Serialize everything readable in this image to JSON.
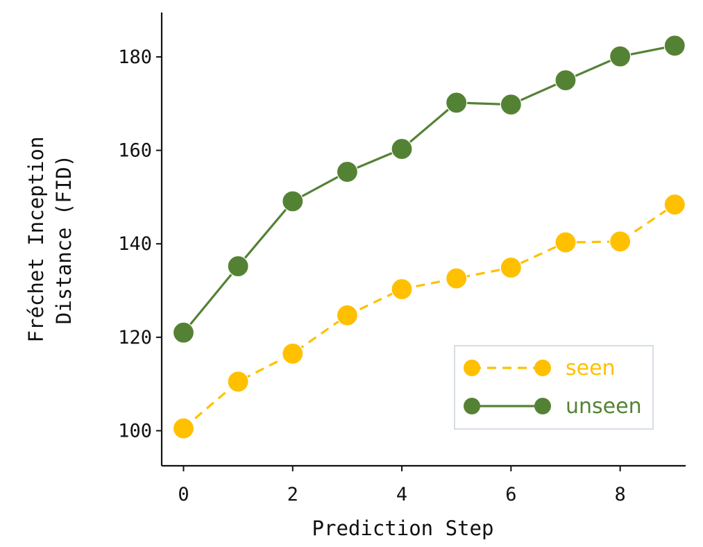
{
  "chart_data": {
    "type": "line",
    "xlabel": "Prediction Step",
    "ylabel_lines": [
      "Fréchet Inception",
      "Distance (FID)"
    ],
    "x": [
      0,
      1,
      2,
      3,
      4,
      5,
      6,
      7,
      8,
      9
    ],
    "xticks": [
      0,
      2,
      4,
      6,
      8
    ],
    "yticks": [
      100,
      120,
      140,
      160,
      180
    ],
    "xlim": [
      -0.4,
      9.2
    ],
    "ylim": [
      92.5,
      189.5
    ],
    "grid": false,
    "legend_position": "lower-right",
    "series": [
      {
        "name": "seen",
        "color": "#FFC000",
        "line_style": "dashed",
        "marker": "circle",
        "values": [
          100.5,
          110.5,
          116.5,
          124.7,
          130.3,
          132.6,
          134.9,
          140.3,
          140.5,
          148.4
        ]
      },
      {
        "name": "unseen",
        "color": "#548235",
        "line_style": "solid",
        "marker": "circle",
        "values": [
          121.0,
          135.2,
          149.1,
          155.4,
          160.3,
          170.2,
          169.8,
          175.0,
          180.1,
          182.4
        ]
      }
    ]
  }
}
